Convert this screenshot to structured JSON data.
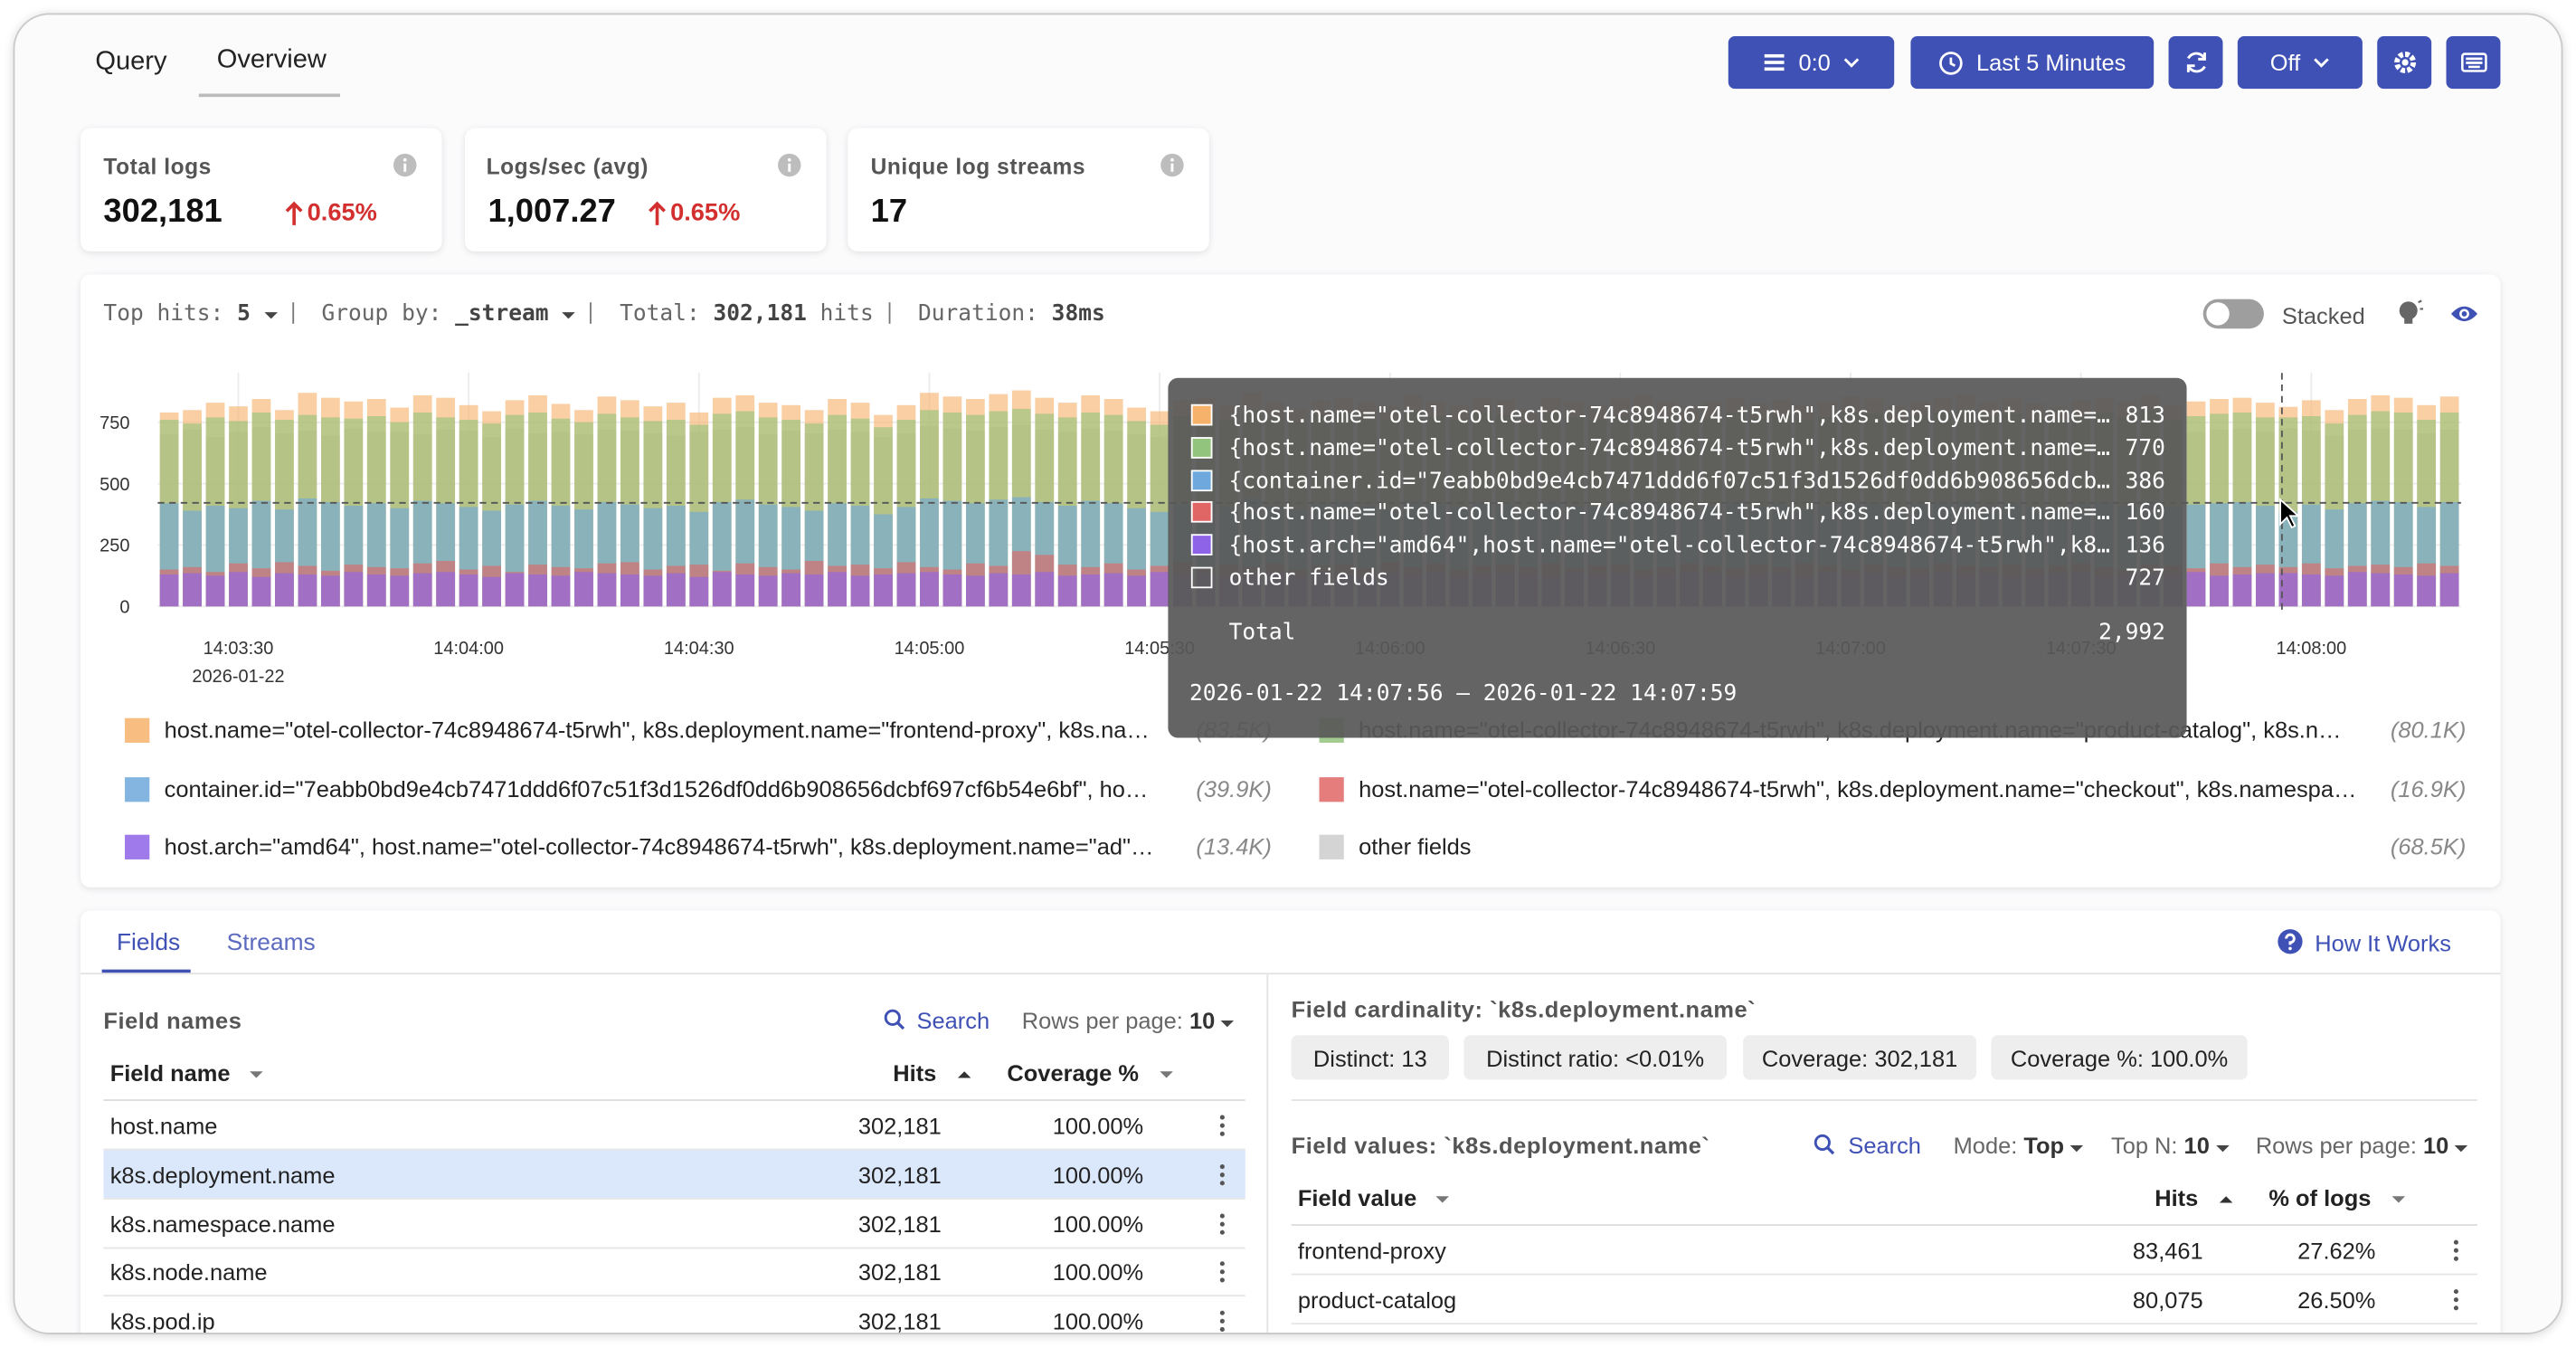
{
  "tabs": [
    "Query",
    "Overview"
  ],
  "toolbar": {
    "tenant": "0:0",
    "time_range": "Last 5 Minutes",
    "refresh": "Off"
  },
  "stats": [
    {
      "label": "Total logs",
      "value": "302,181",
      "change": "0.65%"
    },
    {
      "label": "Logs/sec (avg)",
      "value": "1,007.27",
      "change": "0.65%"
    },
    {
      "label": "Unique log streams",
      "value": "17"
    }
  ],
  "chart_header": {
    "top_hits_label": "Top hits:",
    "top_hits": "5",
    "group_by_label": "Group by:",
    "group_by": "_stream",
    "total_label": "Total:",
    "total": "302,181",
    "total_unit": "hits",
    "duration_label": "Duration:",
    "duration": "38ms",
    "stacked_label": "Stacked"
  },
  "chart_data": {
    "type": "bar",
    "stacked": false,
    "categories": [
      null,
      null,
      null,
      "14:03:30",
      null,
      null,
      null,
      null,
      null,
      null,
      null,
      null,
      null,
      "14:04:00",
      null,
      null,
      null,
      null,
      null,
      null,
      null,
      null,
      null,
      "14:04:30",
      null,
      null,
      null,
      null,
      null,
      null,
      null,
      null,
      null,
      "14:05:00",
      null,
      null,
      null,
      null,
      null,
      null,
      null,
      null,
      null,
      "14:05:30",
      null,
      null,
      null,
      null,
      null,
      null,
      null,
      null,
      null,
      "14:06:00",
      null,
      null,
      null,
      null,
      null,
      null,
      null,
      null,
      null,
      "14:06:30",
      null,
      null,
      null,
      null,
      null,
      null,
      null,
      null,
      null,
      "14:07:00",
      null,
      null,
      null,
      null,
      null,
      null,
      null,
      null,
      null,
      "14:07:30",
      null,
      null,
      null,
      null,
      null,
      null,
      null,
      null,
      null,
      "14:08:00",
      null,
      null,
      null,
      null,
      null,
      null
    ],
    "x_date": "2026-01-22",
    "ylim": [
      0,
      900
    ],
    "yticks": [
      0,
      250,
      500,
      750
    ],
    "grid": true,
    "series": [
      {
        "name": "other fields",
        "total_label": "(68.5K)",
        "color": "#cccccc",
        "values": [
          700,
          720,
          690,
          710,
          730,
          705,
          715,
          695,
          725,
          710,
          710,
          700,
          720,
          715,
          690,
          725,
          705,
          710,
          700,
          720,
          715,
          705,
          695,
          710,
          720,
          730,
          700,
          715,
          705,
          720,
          710,
          690,
          705,
          735,
          725,
          715,
          730,
          740,
          720,
          710,
          725,
          715,
          700,
          690,
          710,
          720,
          705,
          735,
          710,
          700,
          715,
          720,
          710,
          700,
          725,
          715,
          705,
          720,
          715,
          695,
          720,
          710,
          705,
          715,
          725,
          710,
          700,
          710,
          720,
          705,
          715,
          700,
          710,
          720,
          715,
          700,
          710,
          720,
          725,
          710,
          720,
          705,
          700,
          715,
          720,
          710,
          725,
          705,
          710,
          720,
          725,
          710,
          727,
          715,
          695,
          720,
          725,
          720,
          705,
          720
        ]
      },
      {
        "name": "host.name=\"otel-collector-74c8948674-t5rwh\", k8s.deployment.name=\"frontend-proxy\", k8s.na…",
        "total_label": "(83.5K)",
        "color": "#f6b26b",
        "values": [
          790,
          800,
          830,
          815,
          845,
          800,
          870,
          850,
          835,
          845,
          810,
          860,
          850,
          820,
          795,
          840,
          860,
          825,
          800,
          855,
          840,
          815,
          830,
          790,
          850,
          860,
          830,
          820,
          800,
          845,
          830,
          780,
          820,
          870,
          855,
          845,
          865,
          880,
          850,
          830,
          860,
          845,
          810,
          795,
          840,
          850,
          820,
          870,
          830,
          805,
          840,
          850,
          830,
          815,
          860,
          835,
          820,
          850,
          840,
          800,
          850,
          830,
          820,
          845,
          860,
          835,
          815,
          830,
          850,
          825,
          840,
          820,
          830,
          855,
          845,
          815,
          835,
          850,
          860,
          830,
          845,
          825,
          815,
          840,
          850,
          830,
          860,
          820,
          835,
          845,
          850,
          830,
          813,
          840,
          800,
          845,
          860,
          850,
          820,
          855
        ]
      },
      {
        "name": "host.name=\"otel-collector-74c8948674-t5rwh\", k8s.deployment.name=\"product-catalog\", k8s.n…",
        "total_label": "(80.1K)",
        "color": "#93c47d",
        "values": [
          760,
          745,
          770,
          755,
          790,
          760,
          780,
          770,
          765,
          775,
          750,
          790,
          770,
          760,
          745,
          780,
          790,
          765,
          750,
          785,
          770,
          755,
          760,
          740,
          785,
          795,
          770,
          760,
          745,
          780,
          765,
          730,
          760,
          800,
          790,
          780,
          795,
          805,
          785,
          770,
          790,
          780,
          755,
          740,
          775,
          785,
          760,
          800,
          770,
          750,
          780,
          790,
          770,
          760,
          795,
          775,
          760,
          790,
          780,
          745,
          790,
          770,
          760,
          780,
          795,
          775,
          755,
          770,
          790,
          765,
          780,
          760,
          770,
          790,
          785,
          755,
          775,
          790,
          800,
          770,
          785,
          765,
          755,
          780,
          790,
          770,
          800,
          760,
          775,
          785,
          790,
          770,
          770,
          775,
          745,
          780,
          795,
          790,
          760,
          790
        ]
      },
      {
        "name": "container.id=\"7eabb0bd9e4cb7471ddd6f07c51f3d1526df0dd6b908656dcbf697cf6b54e6bf\", ho…",
        "total_label": "(39.9K)",
        "color": "#6fa8dc",
        "values": [
          420,
          390,
          410,
          400,
          430,
          395,
          440,
          425,
          410,
          420,
          400,
          430,
          420,
          405,
          390,
          415,
          430,
          410,
          395,
          425,
          415,
          400,
          410,
          385,
          425,
          435,
          415,
          405,
          390,
          420,
          410,
          375,
          405,
          440,
          430,
          420,
          435,
          445,
          425,
          410,
          430,
          420,
          400,
          385,
          415,
          425,
          405,
          440,
          410,
          395,
          415,
          425,
          410,
          400,
          430,
          415,
          405,
          425,
          415,
          390,
          425,
          410,
          405,
          420,
          430,
          415,
          400,
          410,
          425,
          405,
          415,
          400,
          410,
          425,
          420,
          400,
          415,
          425,
          430,
          410,
          420,
          405,
          400,
          415,
          425,
          410,
          430,
          405,
          415,
          420,
          425,
          410,
          386,
          415,
          395,
          420,
          430,
          425,
          405,
          425
        ]
      },
      {
        "name": "host.name=\"otel-collector-74c8948674-t5rwh\", k8s.deployment.name=\"checkout\", k8s.namespa…",
        "total_label": "(16.9K)",
        "color": "#e06666",
        "values": [
          150,
          160,
          140,
          175,
          155,
          180,
          165,
          145,
          170,
          160,
          155,
          175,
          185,
          150,
          165,
          140,
          170,
          160,
          155,
          175,
          180,
          150,
          165,
          170,
          145,
          175,
          160,
          150,
          185,
          165,
          170,
          155,
          180,
          160,
          150,
          175,
          165,
          225,
          210,
          170,
          160,
          175,
          150,
          165,
          180,
          155,
          170,
          160,
          175,
          150,
          165,
          170,
          155,
          180,
          160,
          175,
          150,
          165,
          170,
          160,
          175,
          155,
          165,
          170,
          150,
          160,
          175,
          165,
          155,
          170,
          160,
          175,
          165,
          150,
          170,
          160,
          155,
          175,
          165,
          160,
          170,
          155,
          165,
          175,
          160,
          150,
          170,
          165,
          155,
          175,
          160,
          170,
          160,
          175,
          155,
          165,
          170,
          160,
          175,
          165
        ]
      },
      {
        "name": "host.arch=\"amd64\", host.name=\"otel-collector-74c8948674-t5rwh\", k8s.deployment.name=\"ad\"…",
        "total_label": "(13.4K)",
        "color": "#8e63e8",
        "values": [
          130,
          135,
          125,
          140,
          120,
          135,
          130,
          125,
          140,
          130,
          125,
          135,
          140,
          130,
          120,
          135,
          130,
          125,
          140,
          135,
          130,
          125,
          135,
          120,
          140,
          130,
          125,
          135,
          130,
          140,
          125,
          130,
          135,
          140,
          130,
          125,
          135,
          130,
          140,
          125,
          130,
          135,
          125,
          140,
          130,
          135,
          120,
          130,
          135,
          125,
          140,
          130,
          125,
          135,
          130,
          140,
          125,
          130,
          135,
          130,
          125,
          140,
          130,
          135,
          125,
          130,
          140,
          135,
          125,
          130,
          135,
          125,
          140,
          130,
          135,
          125,
          130,
          140,
          130,
          135,
          125,
          130,
          135,
          140,
          125,
          130,
          135,
          130,
          140,
          125,
          130,
          135,
          136,
          130,
          125,
          140,
          135,
          130,
          125,
          135
        ]
      }
    ],
    "legend_order": [
      1,
      2,
      3,
      4,
      5,
      0
    ]
  },
  "tooltip": {
    "rows": [
      {
        "label": "{host.name=\"otel-collector-74c8948674-t5rwh\",k8s.deployment.name=…",
        "series": 1
      },
      {
        "label": "{host.name=\"otel-collector-74c8948674-t5rwh\",k8s.deployment.name=…",
        "series": 2
      },
      {
        "label": "{container.id=\"7eabb0bd9e4cb7471ddd6f07c51f3d1526df0dd6b908656dcb…",
        "series": 3
      },
      {
        "label": "{host.name=\"otel-collector-74c8948674-t5rwh\",k8s.deployment.name=…",
        "series": 4
      },
      {
        "label": "{host.arch=\"amd64\",host.name=\"otel-collector-74c8948674-t5rwh\",k8…",
        "series": 5
      },
      {
        "label": "other fields",
        "series": 0
      }
    ],
    "bar": 92,
    "total_label": "Total",
    "total": "2,992",
    "range": "2026-01-22 14:07:56 – 2026-01-22 14:07:59"
  },
  "fields_tabs": [
    "Fields",
    "Streams"
  ],
  "how_it_works": "How It Works",
  "field_names": {
    "title": "Field names",
    "search": "Search",
    "rows_per_page_label": "Rows per page:",
    "rows_per_page": "10",
    "headers": [
      "Field name",
      "Hits",
      "Coverage %"
    ],
    "selected_row": 1,
    "rows": [
      [
        "host.name",
        "302,181",
        "100.00%"
      ],
      [
        "k8s.deployment.name",
        "302,181",
        "100.00%"
      ],
      [
        "k8s.namespace.name",
        "302,181",
        "100.00%"
      ],
      [
        "k8s.node.name",
        "302,181",
        "100.00%"
      ],
      [
        "k8s.pod.ip",
        "302,181",
        "100.00%"
      ]
    ]
  },
  "cardinality": {
    "title": "Field cardinality: `k8s.deployment.name`",
    "chips": [
      "Distinct: 13",
      "Distinct ratio: <0.01%",
      "Coverage: 302,181",
      "Coverage %: 100.0%"
    ]
  },
  "field_values": {
    "title": "Field values: `k8s.deployment.name`",
    "search": "Search",
    "mode_label": "Mode:",
    "mode": "Top",
    "top_n_label": "Top N:",
    "top_n": "10",
    "rows_per_page_label": "Rows per page:",
    "rows_per_page": "10",
    "headers": [
      "Field value",
      "Hits",
      "% of logs"
    ],
    "rows": [
      [
        "frontend-proxy",
        "83,461",
        "27.62%"
      ],
      [
        "product-catalog",
        "80,075",
        "26.50%"
      ]
    ]
  }
}
